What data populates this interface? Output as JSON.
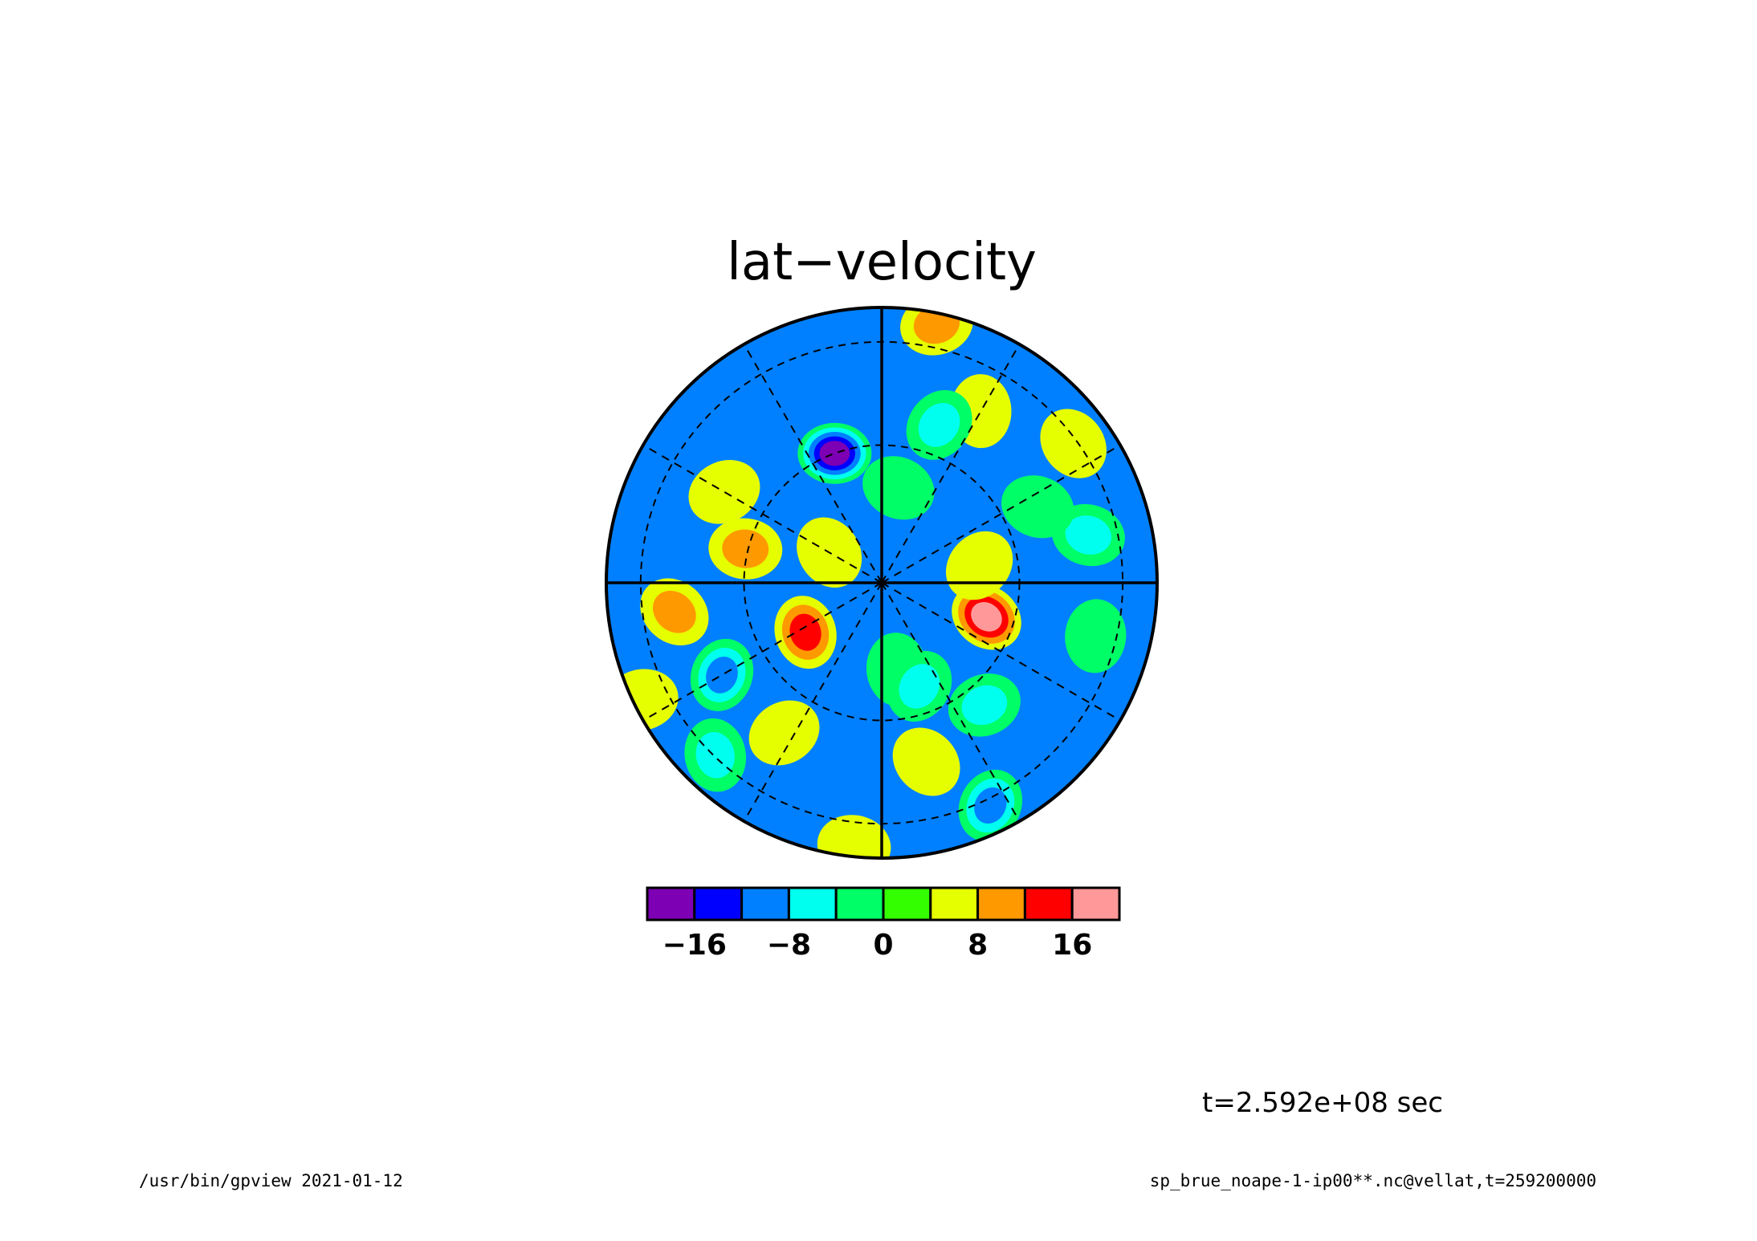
{
  "chart_data": {
    "type": "heatmap",
    "projection": "polar-stereographic",
    "title": "lat−velocity",
    "time_label": "t=2.592e+08 sec",
    "colorbar": {
      "levels": [
        -20,
        -16,
        -12,
        -8,
        -4,
        0,
        4,
        8,
        12,
        16,
        20
      ],
      "tick_labels": [
        {
          "value": -16,
          "label": "−16"
        },
        {
          "value": -8,
          "label": "−8"
        },
        {
          "value": 0,
          "label": "0"
        },
        {
          "value": 8,
          "label": "8"
        },
        {
          "value": 16,
          "label": "16"
        }
      ],
      "colors": [
        "#7d00b4",
        "#0000ff",
        "#0080ff",
        "#00ffee",
        "#00ff66",
        "#33ff00",
        "#e6ff00",
        "#ff9900",
        "#ff0000",
        "#ff9999"
      ]
    },
    "background_level": 2,
    "features": [
      {
        "lon": 340,
        "r": 0.5,
        "value": -18
      },
      {
        "lon": 108,
        "r": 0.4,
        "value": 19
      },
      {
        "lon": 237,
        "r": 0.33,
        "value": 13
      },
      {
        "lon": 240,
        "r": 0.67,
        "value": -9
      },
      {
        "lon": 213,
        "r": 0.65,
        "value": 7
      },
      {
        "lon": 284,
        "r": 0.51,
        "value": 8
      },
      {
        "lon": 262,
        "r": 0.76,
        "value": 10
      },
      {
        "lon": 224,
        "r": 0.87,
        "value": -6
      },
      {
        "lon": 154,
        "r": 0.9,
        "value": -10
      },
      {
        "lon": 300,
        "r": 0.66,
        "value": 6
      },
      {
        "lon": 186,
        "r": 0.96,
        "value": 6
      },
      {
        "lon": 166,
        "r": 0.67,
        "value": 6
      },
      {
        "lon": 170,
        "r": 0.32,
        "value": -4
      },
      {
        "lon": 160,
        "r": 0.4,
        "value": -5
      },
      {
        "lon": 140,
        "r": 0.58,
        "value": -6
      },
      {
        "lon": 77,
        "r": 0.77,
        "value": -6
      },
      {
        "lon": 54,
        "r": 0.86,
        "value": 6
      },
      {
        "lon": 30,
        "r": 0.72,
        "value": 6
      },
      {
        "lon": 20,
        "r": 0.61,
        "value": -5
      },
      {
        "lon": 12,
        "r": 0.96,
        "value": 10
      },
      {
        "lon": 64,
        "r": 0.63,
        "value": -4
      },
      {
        "lon": 300,
        "r": 0.22,
        "value": 6
      },
      {
        "lon": 104,
        "r": 0.8,
        "value": -3
      },
      {
        "lon": 80,
        "r": 0.36,
        "value": 5
      },
      {
        "lon": 244,
        "r": 0.97,
        "value": 6
      },
      {
        "lon": 10,
        "r": 0.35,
        "value": -2
      }
    ]
  },
  "footer": {
    "left": "/usr/bin/gpview   2021-01-12",
    "right": "sp_brue_noape-1-ip00**.nc@vellat,t=259200000"
  }
}
